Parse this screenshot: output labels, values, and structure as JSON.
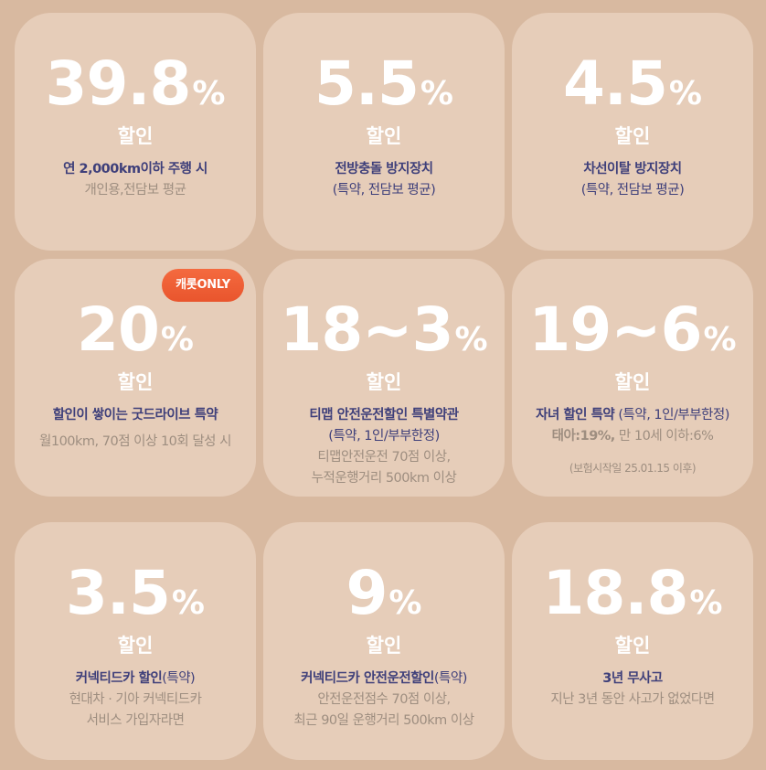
{
  "percent_sign": "%",
  "discount_label": "할인",
  "cards": [
    {
      "value": "39.8",
      "line1": "연 2,000km이하 주행 시",
      "line2": "개인용,전담보 평균"
    },
    {
      "value": "5.5",
      "line1": "전방충돌 방지장치",
      "line2": "(특약, 전담보 평균)"
    },
    {
      "value": "4.5",
      "line1": "차선이탈 방지장치",
      "line2": "(특약, 전담보 평균)"
    },
    {
      "value": "20",
      "badge": "캐롯ONLY",
      "line1": "할인이 쌓이는 굿드라이브 특약",
      "line2": "월100km, 70점 이상 10회 달성 시"
    },
    {
      "value": "18~3",
      "line1": "티맵 안전운전할인 특별약관",
      "line2": "(특약, 1인/부부한정)",
      "line3": "티맵안전운전 70점 이상,",
      "line4": "누적운행거리 500km 이상"
    },
    {
      "value": "19~6",
      "line1_bold": "자녀 할인 특약",
      "line1_rest": " (특약, 1인/부부한정)",
      "line2_bold": "태아:19%,",
      "line2_rest": " 만 10세 이하:6%",
      "line3": "(보험시작일 25.01.15 이후)"
    },
    {
      "value": "3.5",
      "line1_bold": "커넥티드카 할인",
      "line1_rest": "(특약)",
      "line2": "현대차 · 기아 커넥티드카",
      "line3": "서비스 가입자라면"
    },
    {
      "value": "9",
      "line1_bold": "커넥티드카 안전운전할인",
      "line1_rest": "(특약)",
      "line2": "안전운전점수 70점 이상,",
      "line3": "최근 90일 운행거리 500km 이상"
    },
    {
      "value": "18.8",
      "line1": "3년 무사고",
      "line2": "지난 3년 동안 사고가 없었다면"
    }
  ],
  "colors": {
    "background": "#d8b9a0",
    "card": "#e6cdb9",
    "navy": "#3e3f7a",
    "gray": "#9e8e80",
    "badge": "#f0643a"
  }
}
